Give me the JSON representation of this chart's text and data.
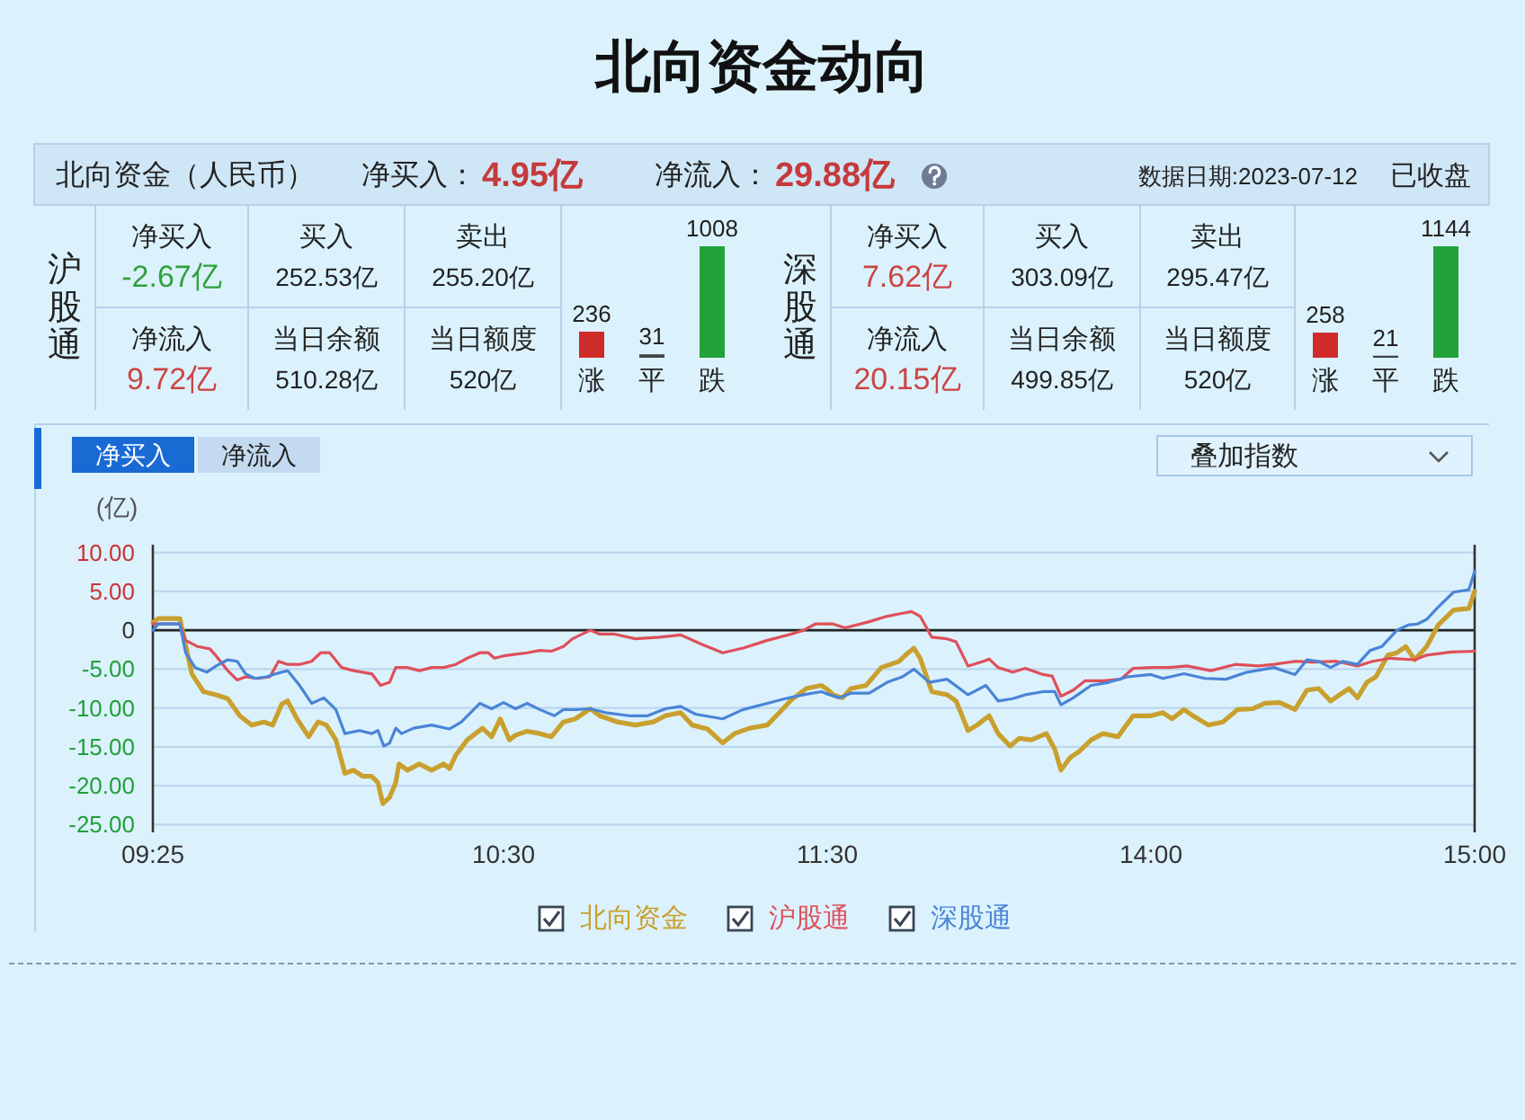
{
  "chart_data": [
    {
      "type": "other",
      "title": "北向资金动向",
      "annotations": [
        "北向资金（人民币）",
        "净买入：",
        "4.95亿",
        "净流入：",
        "29.88亿",
        "数据日期:2023-07-12",
        "已收盘"
      ],
      "colors": [
        null,
        null,
        "#c53a3c",
        null,
        "#c53a3c",
        null,
        null
      ]
    },
    {
      "type": "other",
      "title": "沪股通",
      "annotations": [
        "净买入",
        "-2.67亿",
        "买入",
        "252.53亿",
        "卖出",
        "255.20亿",
        "净流入",
        "9.72亿",
        "当日余额",
        "510.28亿",
        "当日额度",
        "520亿"
      ],
      "colors": [
        null,
        "#2fa23a",
        null,
        null,
        null,
        null,
        null,
        "#cc4444",
        null,
        null,
        null,
        null
      ]
    },
    {
      "type": "bar",
      "categories": [
        "涨",
        "平",
        "跌"
      ],
      "values": [
        236,
        31,
        1008
      ],
      "colors": [
        "#d02b2b",
        "#3d4547",
        "#22a23a"
      ],
      "data_labels": true
    },
    {
      "type": "other",
      "title": "深股通",
      "annotations": [
        "净买入",
        "7.62亿",
        "买入",
        "303.09亿",
        "卖出",
        "295.47亿",
        "净流入",
        "20.15亿",
        "当日余额",
        "499.85亿",
        "当日额度",
        "520亿"
      ],
      "colors": [
        null,
        "#cc4444",
        null,
        null,
        null,
        null,
        null,
        "#cc4444",
        null,
        null,
        null,
        null
      ]
    },
    {
      "type": "bar",
      "categories": [
        "涨",
        "平",
        "跌"
      ],
      "values": [
        258,
        21,
        1144
      ],
      "colors": [
        "#d02b2b",
        "#3d4547",
        "#22a23a"
      ],
      "data_labels": true
    },
    {
      "type": "line",
      "ylabel": "(亿)",
      "annotations": [
        "净买入",
        "净流入",
        "叠加指数"
      ],
      "xlim": [
        9.416667,
        11.5
      ],
      "xticks": [
        {
          "value": 9.416667,
          "label": "09:25"
        },
        {
          "value": 10.5,
          "label": "10:30"
        },
        {
          "value": 11.5,
          "label": "11:30"
        }
      ],
      "ylim": [
        -26,
        11
      ],
      "yticks": [
        {
          "value": 10,
          "label": "10.00"
        },
        {
          "value": 5,
          "label": "5.00"
        },
        0,
        {
          "value": -5,
          "label": "-5.00"
        },
        {
          "value": -10,
          "label": "-10.00"
        },
        {
          "value": -15,
          "label": "-15.00"
        },
        {
          "value": -20,
          "label": "-20.00"
        },
        {
          "value": -25,
          "label": "-25.00"
        }
      ],
      "grid": "y",
      "legend": "bottom",
      "ref_lines": [
        {
          "axis": "y",
          "value": 0,
          "color": "#222222"
        }
      ],
      "series": [
        {
          "name": "北向资金",
          "color": "#c9a02e",
          "x": [
            9.417,
            9.433,
            9.5,
            9.537,
            9.573,
            9.612,
            9.648,
            9.685,
            9.722,
            9.76,
            9.787,
            9.815,
            9.833,
            9.862,
            9.898,
            9.927,
            9.953,
            9.982,
            10.01,
            10.037,
            10.065,
            10.093,
            10.112,
            10.127,
            10.148,
            10.167,
            10.177,
            10.203,
            10.24,
            10.278,
            10.315,
            10.333,
            10.352,
            10.388,
            10.435,
            10.463,
            10.49,
            10.518,
            10.537,
            10.573,
            10.612,
            10.648,
            10.685,
            10.722,
            10.768,
            10.797,
            10.852,
            10.907,
            10.963,
            11,
            11.047,
            11.083,
            11.13,
            11.177,
            11.213,
            11.26,
            11.315,
            11.352,
            11.388,
            11.435,
            11.482,
            11.5
          ],
          "values": [
            1.0,
            1.5,
            1.5,
            -5.6,
            -7.9,
            -8.3,
            -8.8,
            -11,
            -12.2,
            -11.8,
            -12.2,
            -9.5,
            -9.1,
            -11.4,
            -13.7,
            -11.8,
            -12.2,
            -14.1,
            -18.4,
            -18,
            -18.8,
            -18.8,
            -19.6,
            -22.3,
            -21.5,
            -19.6,
            -17.2,
            -18,
            -17.2,
            -18,
            -17.2,
            -17.8,
            -16.1,
            -14.1,
            -12.6,
            -13.7,
            -11.4,
            -14.1,
            -13.5,
            -13,
            -13.3,
            -13.7,
            -11.8,
            -11.4,
            -10.1,
            -11,
            -11.8,
            -12.2,
            -11.8,
            -11,
            -10.6,
            -12.2,
            -12.7,
            -14.5,
            -13.3,
            -12.6,
            -12.2,
            -10.6,
            -9,
            -7.5,
            -7.1,
            -7.6
          ]
        },
        {
          "name": "沪股通",
          "color": "#df4f5a",
          "x": [
            9.417,
            9.5,
            9.518,
            9.555,
            9.593,
            9.612,
            9.648,
            9.677,
            9.703,
            9.74,
            9.778,
            9.805,
            9.833,
            9.87,
            9.907,
            9.935,
            9.963,
            10,
            10.037,
            10.093,
            10.12,
            10.148,
            10.167,
            10.203,
            10.24,
            10.278,
            10.315,
            10.352,
            10.388,
            10.427,
            10.453,
            10.472,
            10.5,
            10.537,
            10.573,
            10.612,
            10.648,
            10.685,
            10.713,
            10.768,
            10.797,
            10.843,
            10.907,
            10.982,
            11.047,
            11.112,
            11.177,
            11.24,
            11.315,
            11.388,
            11.427,
            11.463,
            11.5
          ],
          "values": [
            0.8,
            0.8,
            -1.3,
            -2.1,
            -2.4,
            -3.3,
            -5.2,
            -6.4,
            -6,
            -6.2,
            -6,
            -4,
            -4.4,
            -4.4,
            -4,
            -2.9,
            -2.9,
            -4.8,
            -5.2,
            -5.6,
            -7.1,
            -6.7,
            -4.8,
            -4.8,
            -5.2,
            -4.8,
            -4.8,
            -4.4,
            -3.6,
            -2.9,
            -2.9,
            -3.6,
            -3.3,
            -3.1,
            -2.9,
            -2.6,
            -2.7,
            -2.1,
            -1.1,
            0,
            -0.5,
            -0.5,
            -1.1,
            -0.9,
            -0.6,
            -1.8,
            -2.9,
            -2.3,
            -1.3,
            -0.5,
            0,
            0.8,
            0.8
          ]
        },
        {
          "name": "深股通",
          "color": "#4a84d6",
          "x": [
            9.417,
            9.433,
            9.5,
            9.518,
            9.547,
            9.583,
            9.612,
            9.648,
            9.677,
            9.703,
            9.732,
            9.768,
            9.797,
            9.833,
            9.87,
            9.907,
            9.945,
            9.982,
            10.01,
            10.055,
            10.093,
            10.112,
            10.13,
            10.148,
            10.167,
            10.185,
            10.222,
            10.278,
            10.333,
            10.37,
            10.427,
            10.463,
            10.5,
            10.537,
            10.573,
            10.612,
            10.657,
            10.685,
            10.722,
            10.768,
            10.815,
            10.888,
            10.945,
            11,
            11.047,
            11.093,
            11.177,
            11.24,
            11.315,
            11.37,
            11.427,
            11.482,
            11.5
          ],
          "values": [
            0,
            0.8,
            0.8,
            -2.9,
            -4.8,
            -5.4,
            -4.6,
            -3.8,
            -4,
            -5.6,
            -6.2,
            -6,
            -5.6,
            -5.2,
            -7.1,
            -9.4,
            -8.7,
            -10.2,
            -13.3,
            -12.9,
            -13.3,
            -12.9,
            -14.9,
            -14.5,
            -12.6,
            -13.3,
            -12.6,
            -12.2,
            -12.7,
            -11.8,
            -9.4,
            -10.1,
            -9.3,
            -10.1,
            -9.4,
            -10.2,
            -11,
            -10.2,
            -10.2,
            -10.1,
            -10.6,
            -11,
            -11,
            -10.1,
            -9.8,
            -10.8,
            -11.4,
            -10.2,
            -9.4,
            -8.8,
            -8.3,
            -7.9,
            -8.2
          ]
        }
      ]
    },
    {
      "type": "line",
      "tick_labels": "x",
      "xlim": [
        13,
        15
      ],
      "xticks": [
        {
          "value": 14,
          "label": "14:00"
        },
        {
          "value": 15,
          "label": "15:00"
        }
      ],
      "ylim": [
        -26,
        11
      ],
      "yticks": [
        10,
        5,
        0,
        -5,
        -10,
        -15,
        -20,
        -25
      ],
      "grid": "y",
      "ref_lines": [
        {
          "axis": "y",
          "value": 0,
          "color": "#222222"
        }
      ],
      "series": [
        {
          "color": "#c9a02e",
          "x": [
            13,
            13.018,
            13.047,
            13.073,
            13.12,
            13.167,
            13.222,
            13.25,
            13.268,
            13.287,
            13.323,
            13.37,
            13.398,
            13.435,
            13.463,
            13.5,
            13.528,
            13.565,
            13.593,
            13.63,
            13.677,
            13.703,
            13.722,
            13.75,
            13.778,
            13.815,
            13.852,
            13.898,
            13.945,
            14,
            14.037,
            14.065,
            14.102,
            14.13,
            14.177,
            14.222,
            14.268,
            14.315,
            14.352,
            14.398,
            14.445,
            14.482,
            14.518,
            14.555,
            14.583,
            14.612,
            14.638,
            14.667,
            14.695,
            14.732,
            14.76,
            14.787,
            14.815,
            14.852,
            14.888,
            14.935,
            14.982,
            15
          ],
          "values": [
            -7.6,
            -8.3,
            -8.7,
            -7.5,
            -7.1,
            -4.8,
            -4,
            -2.9,
            -2.3,
            -3.6,
            -7.9,
            -8.3,
            -9.1,
            -12.9,
            -12.2,
            -11,
            -13.3,
            -14.9,
            -13.9,
            -14.1,
            -13.3,
            -15.3,
            -18,
            -16.4,
            -15.6,
            -14.1,
            -13.3,
            -13.7,
            -11,
            -11,
            -10.6,
            -11.4,
            -10.2,
            -11,
            -12.2,
            -11.8,
            -10.2,
            -10.1,
            -9.4,
            -9.3,
            -10.2,
            -7.7,
            -7.5,
            -9.1,
            -8.3,
            -7.5,
            -8.7,
            -6.7,
            -6,
            -3.2,
            -2.9,
            -2.1,
            -3.8,
            -2.1,
            0.7,
            2.6,
            2.8,
            5.0
          ]
        },
        {
          "color": "#df4f5a",
          "x": [
            13,
            13.018,
            13.055,
            13.13,
            13.185,
            13.222,
            13.26,
            13.287,
            13.323,
            13.37,
            13.398,
            13.435,
            13.482,
            13.5,
            13.528,
            13.573,
            13.612,
            13.667,
            13.695,
            13.722,
            13.76,
            13.797,
            13.852,
            13.907,
            13.945,
            14,
            14.055,
            14.112,
            14.185,
            14.26,
            14.333,
            14.38,
            14.445,
            14.5,
            14.573,
            14.638,
            14.685,
            14.74,
            14.815,
            14.852,
            14.927,
            15
          ],
          "values": [
            0.8,
            0.8,
            0.3,
            1.1,
            1.8,
            2.1,
            2.4,
            1.8,
            -0.9,
            -1.1,
            -1.5,
            -4.6,
            -4,
            -3.7,
            -4.8,
            -5.4,
            -4.9,
            -5.7,
            -5.9,
            -8.5,
            -7.7,
            -6.5,
            -6.5,
            -6.3,
            -4.9,
            -4.8,
            -4.8,
            -4.6,
            -5.2,
            -4.4,
            -4.6,
            -4.4,
            -4,
            -4.1,
            -4,
            -4.6,
            -4,
            -3.6,
            -3.8,
            -3.2,
            -2.8,
            -2.7
          ]
        },
        {
          "color": "#4a84d6",
          "x": [
            13,
            13.037,
            13.073,
            13.13,
            13.185,
            13.232,
            13.268,
            13.315,
            13.37,
            13.435,
            13.49,
            13.528,
            13.573,
            13.612,
            13.667,
            13.703,
            13.722,
            13.76,
            13.815,
            13.87,
            13.927,
            14,
            14.037,
            14.102,
            14.167,
            14.232,
            14.297,
            14.38,
            14.445,
            14.482,
            14.518,
            14.555,
            14.593,
            14.638,
            14.677,
            14.713,
            14.76,
            14.797,
            14.823,
            14.852,
            14.888,
            14.935,
            14.982,
            15
          ],
          "values": [
            -8.2,
            -8.7,
            -8.1,
            -8.1,
            -6.7,
            -6,
            -5,
            -6.7,
            -6.3,
            -8.3,
            -7.1,
            -9.1,
            -8.8,
            -8.3,
            -7.9,
            -7.9,
            -9.6,
            -8.7,
            -7.1,
            -6.7,
            -6,
            -5.7,
            -6.2,
            -5.6,
            -6.2,
            -6.3,
            -5.4,
            -4.8,
            -5.7,
            -3.8,
            -4,
            -4.8,
            -4,
            -4.4,
            -2.6,
            -2.1,
            0,
            0.7,
            0.8,
            1.4,
            3,
            4.9,
            5.2,
            7.6
          ]
        }
      ]
    }
  ]
}
